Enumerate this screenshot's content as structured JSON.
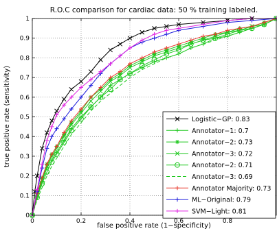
{
  "chart_data": {
    "type": "line",
    "title": "R.O.C comparison for cardiac data: 50 % training labeled.",
    "xlabel": "false positive rate (1−specificity)",
    "ylabel": "true positive rate (sensitivity)",
    "xlim": [
      0,
      1
    ],
    "ylim": [
      0,
      1
    ],
    "xticks": [
      0,
      0.2,
      0.4,
      0.6,
      0.8
    ],
    "xtick_labels": [
      "0",
      "0.2",
      "0.4",
      "0.6",
      "0.8"
    ],
    "yticks": [
      0,
      0.1,
      0.2,
      0.3,
      0.4,
      0.5,
      0.6,
      0.7,
      0.8,
      0.9,
      1
    ],
    "ytick_labels": [
      "0",
      "0.1",
      "0.2",
      "0.3",
      "0.4",
      "0.5",
      "0.6",
      "0.7",
      "0.8",
      "0.9",
      "1"
    ],
    "grid": true,
    "legend_position": "bottom-right",
    "series": [
      {
        "name": "Logistic−GP: 0.83",
        "color": "#000000",
        "marker": "x",
        "dash": "",
        "x": [
          0,
          0.01,
          0.02,
          0.04,
          0.06,
          0.08,
          0.1,
          0.13,
          0.16,
          0.2,
          0.24,
          0.28,
          0.32,
          0.36,
          0.4,
          0.45,
          0.5,
          0.55,
          0.6,
          0.7,
          0.8,
          0.9,
          1
        ],
        "y": [
          0,
          0.12,
          0.2,
          0.34,
          0.42,
          0.48,
          0.53,
          0.59,
          0.64,
          0.68,
          0.73,
          0.79,
          0.84,
          0.87,
          0.9,
          0.93,
          0.95,
          0.96,
          0.97,
          0.98,
          0.99,
          1,
          1
        ]
      },
      {
        "name": "Annotator−1: 0.7",
        "color": "#1fc81f",
        "marker": "+",
        "dash": "",
        "x": [
          0,
          0.02,
          0.04,
          0.06,
          0.08,
          0.1,
          0.13,
          0.16,
          0.2,
          0.24,
          0.28,
          0.32,
          0.36,
          0.4,
          0.45,
          0.5,
          0.55,
          0.6,
          0.65,
          0.7,
          0.75,
          0.8,
          0.85,
          0.9,
          0.95,
          1
        ],
        "y": [
          0,
          0.1,
          0.17,
          0.24,
          0.28,
          0.32,
          0.38,
          0.44,
          0.5,
          0.55,
          0.6,
          0.66,
          0.69,
          0.72,
          0.75,
          0.78,
          0.8,
          0.82,
          0.85,
          0.87,
          0.9,
          0.91,
          0.93,
          0.95,
          0.97,
          1
        ]
      },
      {
        "name": "Annotator−2: 0.73",
        "color": "#1fc81f",
        "marker": "*",
        "dash": "",
        "x": [
          0,
          0.02,
          0.04,
          0.06,
          0.08,
          0.1,
          0.13,
          0.16,
          0.2,
          0.24,
          0.28,
          0.32,
          0.36,
          0.4,
          0.45,
          0.5,
          0.55,
          0.6,
          0.65,
          0.7,
          0.75,
          0.8,
          0.85,
          0.9,
          0.95,
          1
        ],
        "y": [
          0,
          0.11,
          0.19,
          0.26,
          0.31,
          0.35,
          0.41,
          0.47,
          0.53,
          0.6,
          0.64,
          0.69,
          0.72,
          0.76,
          0.79,
          0.82,
          0.84,
          0.86,
          0.88,
          0.9,
          0.92,
          0.93,
          0.95,
          0.96,
          0.98,
          1
        ]
      },
      {
        "name": "Annotator−3: 0.72",
        "color": "#1fc81f",
        "marker": "x",
        "dash": "",
        "x": [
          0,
          0.02,
          0.04,
          0.06,
          0.08,
          0.1,
          0.13,
          0.16,
          0.2,
          0.24,
          0.28,
          0.32,
          0.36,
          0.4,
          0.45,
          0.5,
          0.55,
          0.6,
          0.65,
          0.7,
          0.75,
          0.8,
          0.85,
          0.9,
          0.95,
          1
        ],
        "y": [
          0,
          0.1,
          0.18,
          0.25,
          0.3,
          0.34,
          0.4,
          0.46,
          0.52,
          0.58,
          0.63,
          0.68,
          0.71,
          0.75,
          0.78,
          0.81,
          0.83,
          0.85,
          0.87,
          0.89,
          0.91,
          0.93,
          0.94,
          0.96,
          0.97,
          1
        ]
      },
      {
        "name": "Annotator−2: 0.71",
        "color": "#1fc81f",
        "marker": "o",
        "dash": "",
        "x": [
          0,
          0.02,
          0.04,
          0.06,
          0.08,
          0.1,
          0.13,
          0.16,
          0.2,
          0.24,
          0.28,
          0.32,
          0.36,
          0.4,
          0.45,
          0.5,
          0.55,
          0.6,
          0.65,
          0.7,
          0.75,
          0.8,
          0.85,
          0.9,
          0.95,
          1
        ],
        "y": [
          0,
          0.09,
          0.16,
          0.22,
          0.27,
          0.31,
          0.37,
          0.43,
          0.49,
          0.55,
          0.6,
          0.64,
          0.69,
          0.72,
          0.76,
          0.79,
          0.82,
          0.84,
          0.87,
          0.89,
          0.9,
          0.92,
          0.94,
          0.95,
          0.97,
          1
        ]
      },
      {
        "name": "Annotator−3: 0.69",
        "color": "#1fc81f",
        "marker": "",
        "dash": "5,3",
        "x": [
          0,
          0.02,
          0.04,
          0.06,
          0.08,
          0.1,
          0.13,
          0.16,
          0.2,
          0.24,
          0.28,
          0.32,
          0.36,
          0.4,
          0.45,
          0.5,
          0.55,
          0.6,
          0.65,
          0.7,
          0.75,
          0.8,
          0.85,
          0.9,
          0.95,
          1
        ],
        "y": [
          0,
          0.08,
          0.14,
          0.2,
          0.25,
          0.29,
          0.35,
          0.41,
          0.47,
          0.53,
          0.58,
          0.62,
          0.66,
          0.7,
          0.74,
          0.77,
          0.8,
          0.82,
          0.85,
          0.87,
          0.89,
          0.91,
          0.93,
          0.95,
          0.97,
          1
        ]
      },
      {
        "name": "Annotator Majority: 0.73",
        "color": "#e8392b",
        "marker": "+",
        "dash": "",
        "x": [
          0,
          0.02,
          0.04,
          0.06,
          0.08,
          0.1,
          0.13,
          0.16,
          0.2,
          0.24,
          0.28,
          0.32,
          0.36,
          0.4,
          0.45,
          0.5,
          0.55,
          0.6,
          0.65,
          0.7,
          0.75,
          0.8,
          0.85,
          0.9,
          0.95,
          1
        ],
        "y": [
          0,
          0.11,
          0.19,
          0.26,
          0.31,
          0.35,
          0.42,
          0.48,
          0.54,
          0.6,
          0.65,
          0.7,
          0.73,
          0.77,
          0.8,
          0.83,
          0.85,
          0.87,
          0.89,
          0.91,
          0.92,
          0.94,
          0.95,
          0.96,
          0.98,
          1
        ]
      },
      {
        "name": "ML−Original: 0.79",
        "color": "#1a1adb",
        "marker": "+",
        "dash": "",
        "x": [
          0,
          0.02,
          0.04,
          0.06,
          0.08,
          0.1,
          0.13,
          0.16,
          0.2,
          0.24,
          0.28,
          0.32,
          0.36,
          0.4,
          0.45,
          0.5,
          0.55,
          0.6,
          0.7,
          0.8,
          0.9,
          1
        ],
        "y": [
          0,
          0.12,
          0.24,
          0.34,
          0.4,
          0.44,
          0.49,
          0.54,
          0.6,
          0.66,
          0.72,
          0.77,
          0.81,
          0.85,
          0.88,
          0.9,
          0.92,
          0.94,
          0.96,
          0.98,
          0.99,
          1
        ]
      },
      {
        "name": "SVM−Light: 0.81",
        "color": "#e020e0",
        "marker": "+",
        "dash": "",
        "x": [
          0,
          0.02,
          0.04,
          0.06,
          0.08,
          0.1,
          0.13,
          0.16,
          0.2,
          0.24,
          0.28,
          0.32,
          0.36,
          0.4,
          0.45,
          0.5,
          0.55,
          0.6,
          0.7,
          0.8,
          0.9,
          1
        ],
        "y": [
          0,
          0.13,
          0.26,
          0.38,
          0.45,
          0.51,
          0.56,
          0.6,
          0.65,
          0.69,
          0.73,
          0.77,
          0.81,
          0.85,
          0.89,
          0.92,
          0.94,
          0.95,
          0.97,
          0.99,
          1,
          1
        ]
      }
    ]
  }
}
